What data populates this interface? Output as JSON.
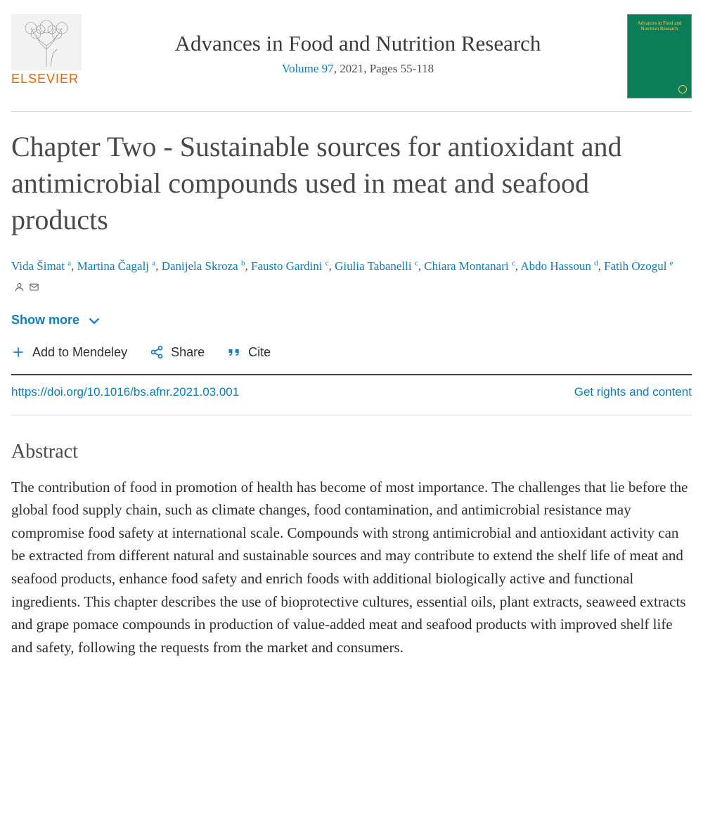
{
  "publisher": {
    "logo_text": "ELSEVIER",
    "journal_title": "Advances in Food and Nutrition Research",
    "volume_link": "Volume 97",
    "year_pages": ", 2021, Pages 55-118",
    "cover_text": "Advances in Food and Nutrition Research"
  },
  "article": {
    "title": "Chapter Two - Sustainable sources for antioxidant and antimicrobial compounds used in meat and seafood products"
  },
  "authors": [
    {
      "name": "Vida Šimat",
      "aff": "a"
    },
    {
      "name": "Martina Čagalj",
      "aff": "a"
    },
    {
      "name": "Danijela Skroza",
      "aff": "b"
    },
    {
      "name": "Fausto Gardini",
      "aff": "c"
    },
    {
      "name": "Giulia Tabanelli",
      "aff": "c"
    },
    {
      "name": "Chiara Montanari",
      "aff": "c"
    },
    {
      "name": "Abdo Hassoun",
      "aff": "d"
    },
    {
      "name": "Fatih Ozogul",
      "aff": "e",
      "corresponding": true
    }
  ],
  "controls": {
    "show_more": "Show more",
    "mendeley": "Add to Mendeley",
    "share": "Share",
    "cite": "Cite"
  },
  "links": {
    "doi": "https://doi.org/10.1016/bs.afnr.2021.03.001",
    "rights": "Get rights and content"
  },
  "abstract": {
    "heading": "Abstract",
    "text": "The contribution of food in promotion of health has become of most importance. The challenges that lie before the global food supply chain, such as climate changes, food contamination, and antimicrobial resistance may compromise food safety at international scale. Compounds with strong antimicrobial and antioxidant activity can be extracted from different natural and sustainable sources and may contribute to extend the shelf life of meat and seafood products, enhance food safety and enrich foods with additional biologically active and functional ingredients. This chapter describes the use of bioprotective cultures, essential oils, plant extracts, seaweed extracts and grape pomace compounds in production of value-added meat and seafood products with improved shelf life and safety, following the requests from the market and consumers."
  },
  "colors": {
    "link": "#0c7dbb",
    "text": "#2e2e2e",
    "heading": "#4a4a4a",
    "elsevier_orange": "#eb6500",
    "cover_green": "#0d7d57"
  }
}
